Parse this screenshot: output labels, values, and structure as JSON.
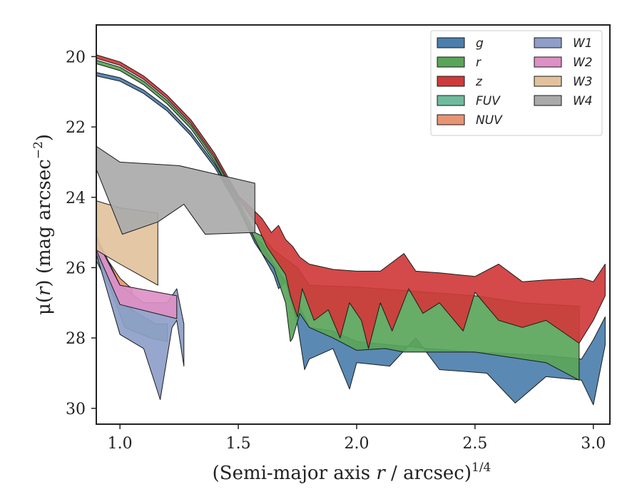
{
  "chart_data": {
    "type": "area",
    "xlabel_main": "(Semi-major axis ",
    "xlabel_var": "r",
    "xlabel_mid": " / arcsec)",
    "xlabel_sup": "1/4",
    "ylabel_main": "μ(",
    "ylabel_var": "r",
    "ylabel_end": ") (mag arcsec",
    "ylabel_sup": "−2",
    "ylabel_close": ")",
    "xlim": [
      0.9,
      3.07
    ],
    "ylim": [
      30.45,
      19.1
    ],
    "xticks": [
      1.0,
      1.5,
      2.0,
      2.5,
      3.0
    ],
    "xtick_labels": [
      "1.0",
      "1.5",
      "2.0",
      "2.5",
      "3.0"
    ],
    "yticks": [
      20,
      22,
      24,
      26,
      28,
      30
    ],
    "ytick_labels": [
      "20",
      "22",
      "24",
      "26",
      "28",
      "30"
    ],
    "legend_position": "upper right",
    "legend_columns": 2,
    "series": [
      {
        "name": "g",
        "color": "#4c7fac",
        "upper": [
          [
            0.9,
            20.45
          ],
          [
            1.0,
            20.6
          ],
          [
            1.1,
            20.95
          ],
          [
            1.2,
            21.45
          ],
          [
            1.3,
            22.15
          ],
          [
            1.4,
            23.05
          ],
          [
            1.5,
            24.2
          ],
          [
            1.57,
            25.15
          ],
          [
            1.6,
            25.3
          ],
          [
            1.65,
            25.9
          ],
          [
            1.7,
            26.4
          ],
          [
            1.72,
            26.7
          ],
          [
            1.76,
            27.1
          ],
          [
            1.8,
            27.7
          ],
          [
            1.9,
            27.8
          ],
          [
            2.0,
            28.1
          ],
          [
            2.15,
            28.2
          ],
          [
            2.3,
            28.3
          ],
          [
            2.5,
            28.4
          ],
          [
            2.8,
            28.5
          ],
          [
            2.95,
            28.6
          ],
          [
            3.0,
            28.05
          ],
          [
            3.05,
            27.4
          ]
        ],
        "lower": [
          [
            3.05,
            28.2
          ],
          [
            3.0,
            29.9
          ],
          [
            2.95,
            29.2
          ],
          [
            2.8,
            29.1
          ],
          [
            2.67,
            29.85
          ],
          [
            2.55,
            29.0
          ],
          [
            2.35,
            28.9
          ],
          [
            2.25,
            28.0
          ],
          [
            2.14,
            28.8
          ],
          [
            2.0,
            28.7
          ],
          [
            1.97,
            29.45
          ],
          [
            1.9,
            28.3
          ],
          [
            1.8,
            28.6
          ],
          [
            1.78,
            28.9
          ],
          [
            1.75,
            27.6
          ],
          [
            1.7,
            26.4
          ],
          [
            1.67,
            26.6
          ],
          [
            1.65,
            26.2
          ],
          [
            1.6,
            25.6
          ],
          [
            1.57,
            25.3
          ],
          [
            1.5,
            24.3
          ],
          [
            1.4,
            23.15
          ],
          [
            1.3,
            22.25
          ],
          [
            1.2,
            21.55
          ],
          [
            1.1,
            21.05
          ],
          [
            1.0,
            20.7
          ],
          [
            0.9,
            20.55
          ]
        ]
      },
      {
        "name": "r",
        "color": "#5aa55a",
        "upper": [
          [
            0.9,
            20.1
          ],
          [
            1.0,
            20.3
          ],
          [
            1.1,
            20.7
          ],
          [
            1.2,
            21.25
          ],
          [
            1.3,
            21.95
          ],
          [
            1.4,
            22.9
          ],
          [
            1.5,
            24.1
          ],
          [
            1.57,
            25.0
          ],
          [
            1.6,
            25.1
          ],
          [
            1.65,
            25.5
          ],
          [
            1.7,
            25.75
          ],
          [
            1.75,
            26.0
          ],
          [
            1.8,
            26.5
          ],
          [
            2.0,
            26.55
          ],
          [
            2.2,
            26.65
          ],
          [
            2.5,
            26.8
          ],
          [
            2.7,
            27.0
          ],
          [
            2.94,
            27.1
          ]
        ],
        "lower": [
          [
            2.94,
            29.2
          ],
          [
            2.8,
            28.7
          ],
          [
            2.5,
            28.4
          ],
          [
            2.2,
            28.4
          ],
          [
            2.12,
            28.3
          ],
          [
            2.0,
            28.35
          ],
          [
            1.9,
            28.0
          ],
          [
            1.8,
            27.7
          ],
          [
            1.76,
            27.3
          ],
          [
            1.73,
            28.0
          ],
          [
            1.72,
            28.1
          ],
          [
            1.7,
            27.0
          ],
          [
            1.65,
            26.0
          ],
          [
            1.6,
            25.6
          ],
          [
            1.57,
            25.2
          ],
          [
            1.5,
            24.2
          ],
          [
            1.4,
            23.0
          ],
          [
            1.3,
            22.05
          ],
          [
            1.2,
            21.35
          ],
          [
            1.1,
            20.8
          ],
          [
            1.0,
            20.4
          ],
          [
            0.9,
            20.2
          ]
        ]
      },
      {
        "name": "z",
        "color": "#d03a3a",
        "upper": [
          [
            0.9,
            19.95
          ],
          [
            1.0,
            20.15
          ],
          [
            1.1,
            20.55
          ],
          [
            1.2,
            21.1
          ],
          [
            1.3,
            21.8
          ],
          [
            1.4,
            22.75
          ],
          [
            1.5,
            23.95
          ],
          [
            1.57,
            24.4
          ],
          [
            1.6,
            24.6
          ],
          [
            1.64,
            25.0
          ],
          [
            1.67,
            24.8
          ],
          [
            1.7,
            25.2
          ],
          [
            1.73,
            25.4
          ],
          [
            1.76,
            25.7
          ],
          [
            1.8,
            25.9
          ],
          [
            1.9,
            26.05
          ],
          [
            2.0,
            26.1
          ],
          [
            2.1,
            26.1
          ],
          [
            2.2,
            25.6
          ],
          [
            2.25,
            26.1
          ],
          [
            2.35,
            26.15
          ],
          [
            2.5,
            26.25
          ],
          [
            2.6,
            25.9
          ],
          [
            2.7,
            26.4
          ],
          [
            2.8,
            26.35
          ],
          [
            2.95,
            26.3
          ],
          [
            3.0,
            26.4
          ],
          [
            3.05,
            25.9
          ]
        ],
        "lower": [
          [
            3.05,
            26.8
          ],
          [
            3.0,
            27.5
          ],
          [
            2.94,
            28.15
          ],
          [
            2.8,
            27.5
          ],
          [
            2.7,
            27.7
          ],
          [
            2.6,
            27.5
          ],
          [
            2.5,
            26.7
          ],
          [
            2.45,
            27.8
          ],
          [
            2.35,
            27.0
          ],
          [
            2.28,
            27.3
          ],
          [
            2.22,
            26.6
          ],
          [
            2.15,
            27.8
          ],
          [
            2.1,
            27.0
          ],
          [
            2.05,
            28.3
          ],
          [
            2.02,
            27.5
          ],
          [
            1.97,
            27.0
          ],
          [
            1.93,
            28.0
          ],
          [
            1.88,
            27.2
          ],
          [
            1.82,
            27.5
          ],
          [
            1.77,
            26.6
          ],
          [
            1.75,
            27.4
          ],
          [
            1.72,
            26.8
          ],
          [
            1.7,
            26.2
          ],
          [
            1.66,
            25.8
          ],
          [
            1.62,
            25.4
          ],
          [
            1.58,
            24.8
          ],
          [
            1.5,
            24.05
          ],
          [
            1.4,
            22.85
          ],
          [
            1.3,
            21.9
          ],
          [
            1.2,
            21.2
          ],
          [
            1.1,
            20.65
          ],
          [
            1.0,
            20.25
          ],
          [
            0.9,
            20.05
          ]
        ]
      },
      {
        "name": "FUV",
        "color": "#6fba9e",
        "upper": [
          [
            0.9,
            25.3
          ],
          [
            0.95,
            25.9
          ],
          [
            1.0,
            26.7
          ],
          [
            1.05,
            27.2
          ],
          [
            1.1,
            27.4
          ],
          [
            1.15,
            27.6
          ],
          [
            1.2,
            27.6
          ]
        ],
        "lower": [
          [
            1.2,
            28.1
          ],
          [
            1.13,
            28.0
          ],
          [
            1.02,
            27.7
          ],
          [
            0.96,
            26.6
          ],
          [
            0.9,
            25.8
          ]
        ]
      },
      {
        "name": "NUV",
        "color": "#e89473",
        "upper": [
          [
            0.9,
            25.2
          ],
          [
            0.95,
            25.8
          ],
          [
            1.0,
            26.3
          ],
          [
            1.05,
            26.6
          ]
        ],
        "lower": [
          [
            1.05,
            27.2
          ],
          [
            1.0,
            27.0
          ],
          [
            0.95,
            26.2
          ],
          [
            0.9,
            25.6
          ]
        ]
      },
      {
        "name": "W1",
        "color": "#8e9ec8",
        "upper": [
          [
            0.9,
            25.1
          ],
          [
            1.0,
            26.5
          ],
          [
            1.1,
            27.0
          ],
          [
            1.2,
            27.0
          ],
          [
            1.24,
            26.6
          ],
          [
            1.27,
            27.6
          ]
        ],
        "lower": [
          [
            1.27,
            28.8
          ],
          [
            1.24,
            27.5
          ],
          [
            1.22,
            27.7
          ],
          [
            1.17,
            29.75
          ],
          [
            1.1,
            28.3
          ],
          [
            1.0,
            27.9
          ],
          [
            0.9,
            25.6
          ]
        ]
      },
      {
        "name": "W2",
        "color": "#dd90c5",
        "upper": [
          [
            0.9,
            25.2
          ],
          [
            1.0,
            26.5
          ],
          [
            1.24,
            26.8
          ]
        ],
        "lower": [
          [
            1.24,
            27.45
          ],
          [
            1.0,
            27.05
          ],
          [
            0.9,
            25.5
          ]
        ]
      },
      {
        "name": "W3",
        "color": "#e2c29c",
        "upper": [
          [
            0.9,
            24.1
          ],
          [
            1.0,
            24.3
          ],
          [
            1.16,
            24.45
          ]
        ],
        "lower": [
          [
            1.16,
            26.5
          ],
          [
            1.0,
            25.9
          ],
          [
            0.9,
            25.5
          ]
        ]
      },
      {
        "name": "W4",
        "color": "#aaaaaa",
        "upper": [
          [
            0.9,
            22.55
          ],
          [
            1.0,
            23.0
          ],
          [
            1.25,
            23.1
          ],
          [
            1.57,
            23.6
          ]
        ],
        "lower": [
          [
            1.57,
            25.0
          ],
          [
            1.36,
            25.05
          ],
          [
            1.27,
            24.2
          ],
          [
            1.16,
            24.7
          ],
          [
            1.01,
            25.05
          ],
          [
            0.9,
            23.2
          ]
        ]
      }
    ]
  }
}
